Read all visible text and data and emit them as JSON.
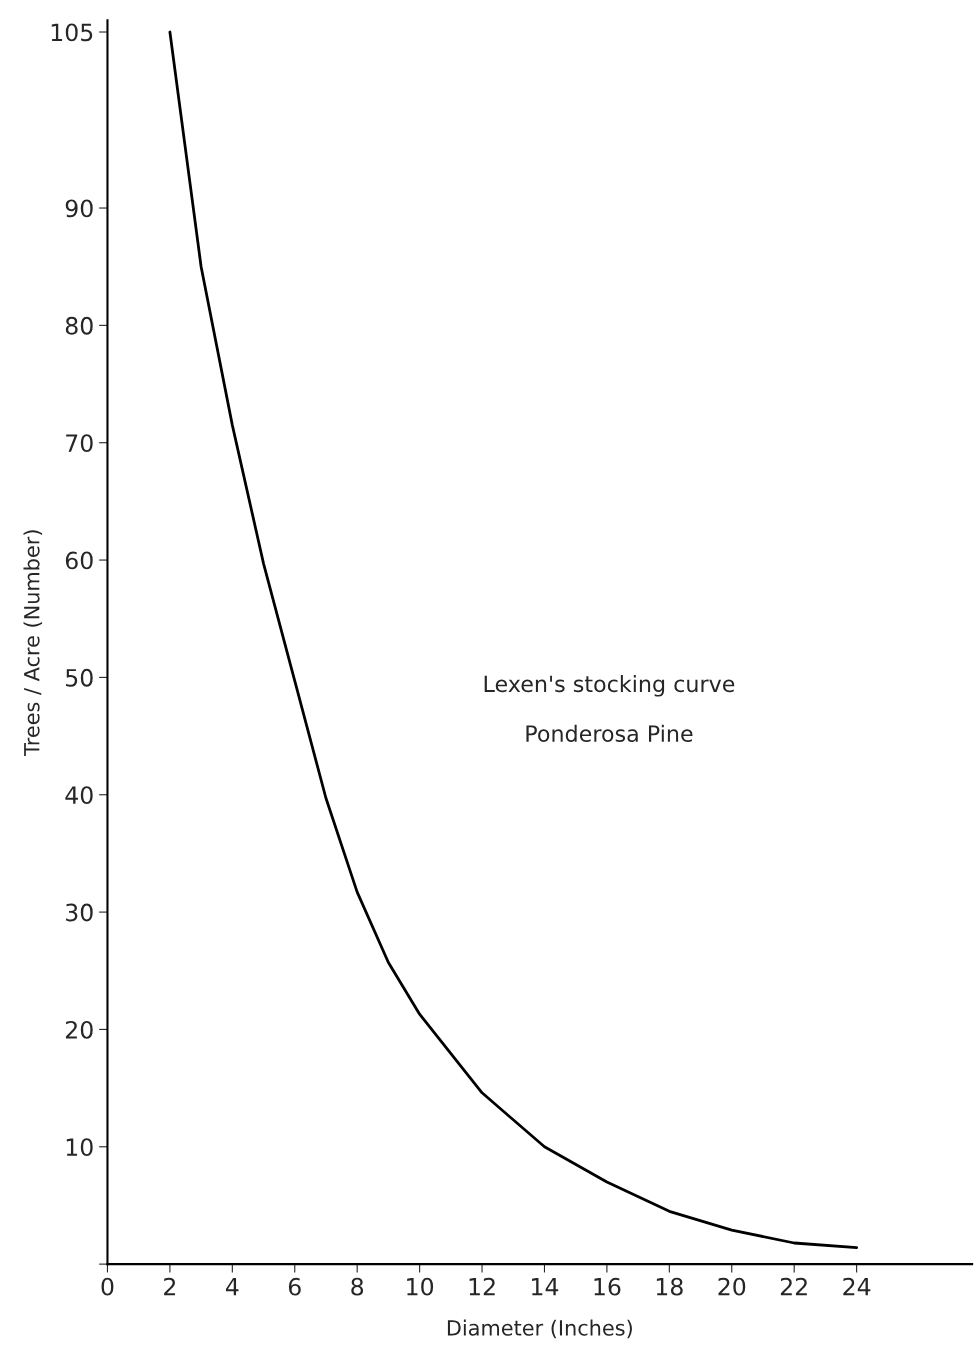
{
  "chart_data": {
    "type": "line",
    "xlabel": "Diameter (Inches)",
    "ylabel": "Trees / Acre (Number)",
    "x": [
      2,
      3,
      4,
      5,
      6,
      7,
      8,
      9,
      10,
      12,
      14,
      16,
      18,
      20,
      22,
      24
    ],
    "series": [
      {
        "color": "#000000",
        "values": [
          105,
          85,
          71.5,
          59.7,
          49.7,
          39.7,
          31.7,
          25.7,
          21.3,
          14.6,
          10,
          7,
          4.5,
          2.9,
          1.8,
          1.4
        ]
      }
    ],
    "xlim": [
      0,
      27.7
    ],
    "xticks": [
      0,
      2,
      4,
      6,
      8,
      10,
      12,
      14,
      16,
      18,
      20,
      22,
      24
    ],
    "ylim": [
      0,
      106
    ],
    "yticks": [
      {
        "value": 0,
        "label": null
      },
      10,
      20,
      30,
      40,
      50,
      60,
      70,
      80,
      90,
      105
    ],
    "annotations": [
      "Lexen's stocking curve",
      "Ponderosa Pine"
    ],
    "grid": false,
    "legend": false,
    "marker": "none",
    "line_style": "solid"
  }
}
